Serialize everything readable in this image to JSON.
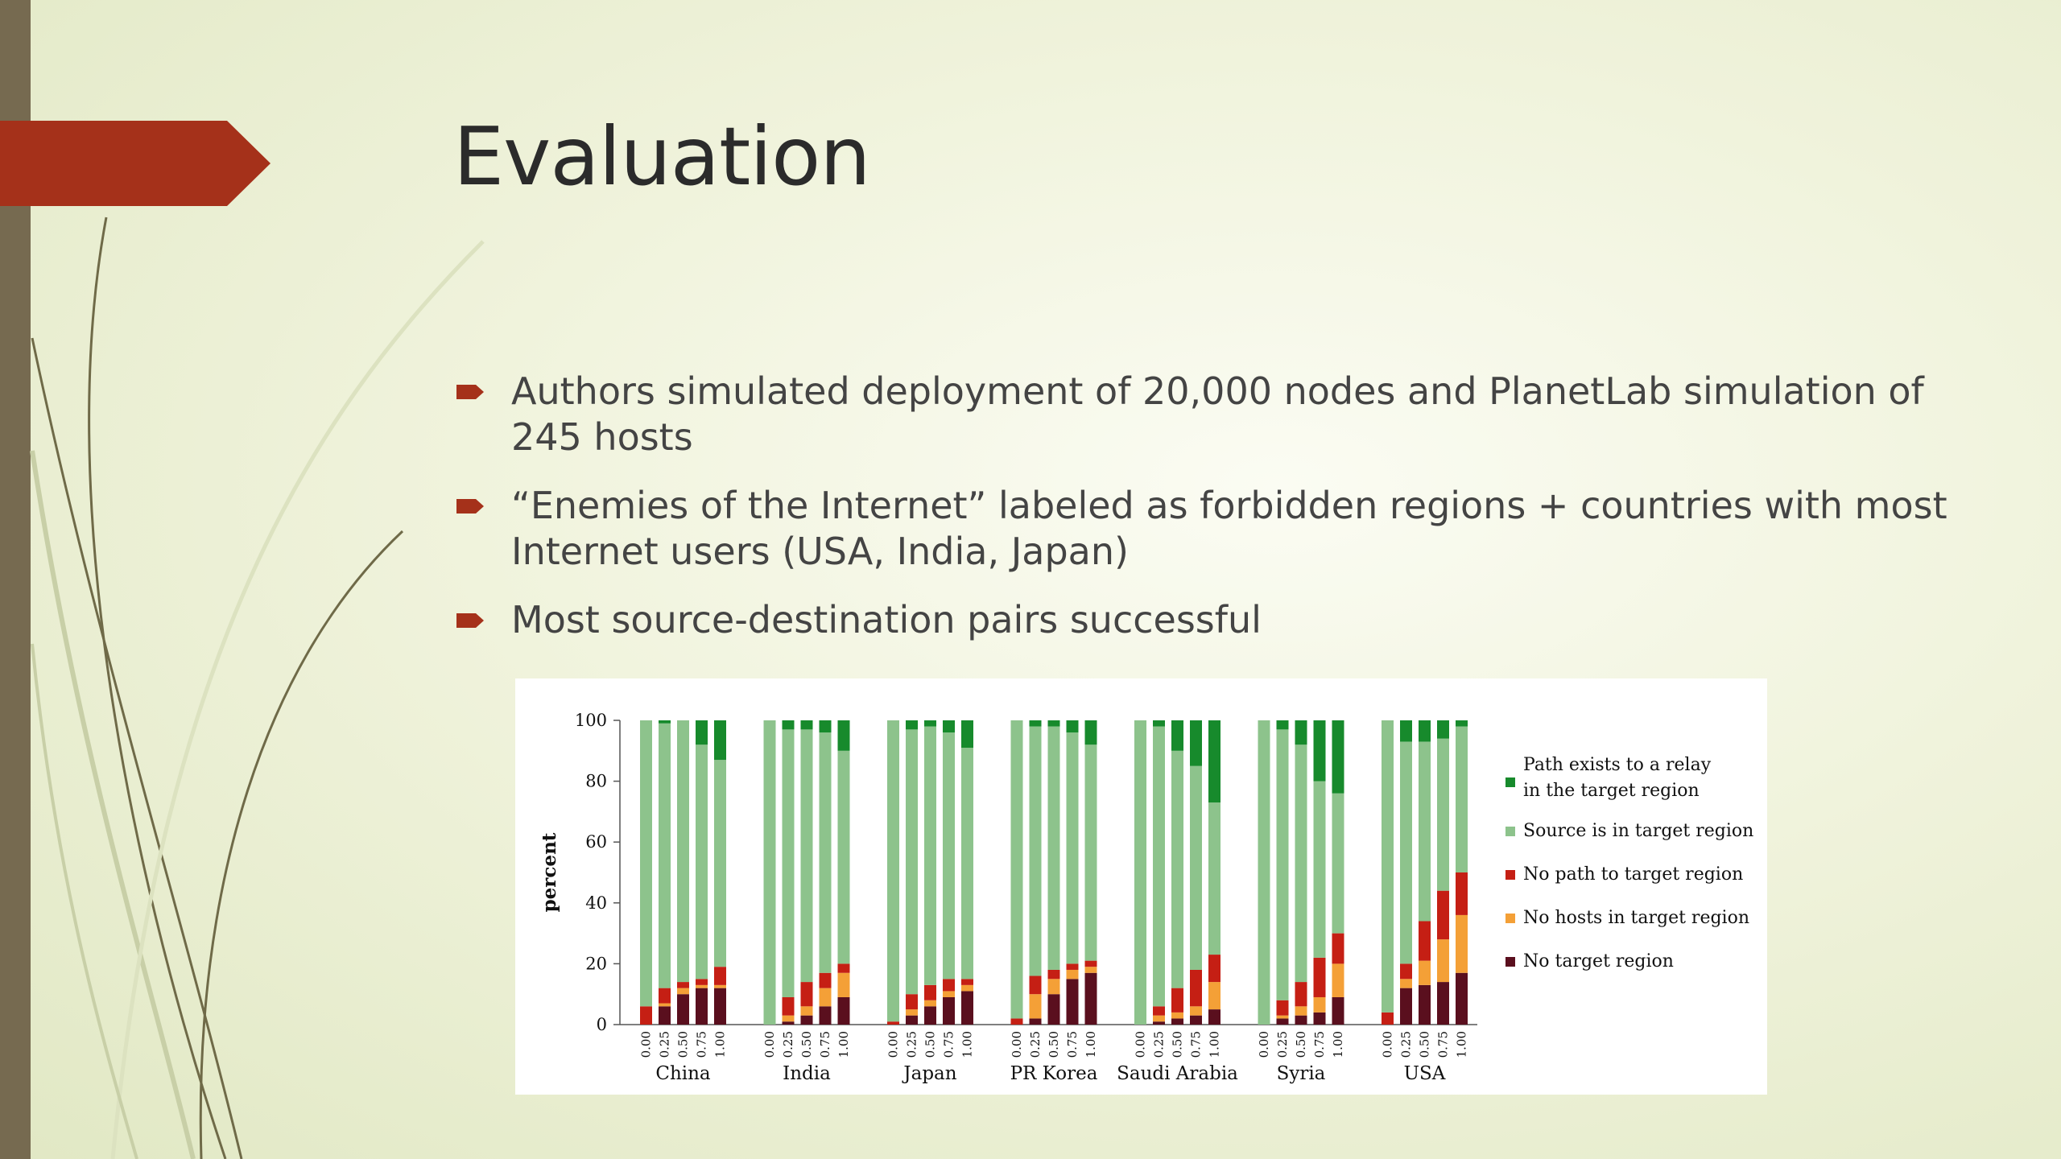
{
  "slide": {
    "title": "Evaluation",
    "bullets": [
      "Authors simulated deployment of 20,000 nodes and PlanetLab simulation of 245 hosts",
      "“Enemies of the Internet” labeled as forbidden regions + countries with most Internet users (USA, India, Japan)",
      "Most source-destination pairs successful"
    ],
    "colors": {
      "accent": "#a5311a",
      "sidebar": "#766a50"
    }
  },
  "chart_data": {
    "type": "bar",
    "stacked": true,
    "ylabel": "percent",
    "ylim": [
      0,
      100
    ],
    "yticks": [
      0,
      20,
      40,
      60,
      80,
      100
    ],
    "groups": [
      "China",
      "India",
      "Japan",
      "PR Korea",
      "Saudi Arabia",
      "Syria",
      "USA"
    ],
    "subcategories": [
      "0.00",
      "0.25",
      "0.50",
      "0.75",
      "1.00"
    ],
    "series": [
      {
        "name": "No target region",
        "color": "#5a0f1e",
        "values": [
          [
            0,
            6,
            10,
            12,
            12
          ],
          [
            0,
            1,
            3,
            6,
            9
          ],
          [
            0,
            3,
            6,
            9,
            11
          ],
          [
            0,
            2,
            10,
            15,
            17
          ],
          [
            0,
            1,
            2,
            3,
            5
          ],
          [
            0,
            2,
            3,
            4,
            9
          ],
          [
            0,
            12,
            13,
            14,
            17
          ]
        ]
      },
      {
        "name": "No hosts in target region",
        "color": "#f4a037",
        "values": [
          [
            0,
            1,
            2,
            1,
            1
          ],
          [
            0,
            2,
            3,
            6,
            8
          ],
          [
            0,
            2,
            2,
            2,
            2
          ],
          [
            0,
            8,
            5,
            3,
            2
          ],
          [
            0,
            2,
            2,
            3,
            9
          ],
          [
            0,
            1,
            3,
            5,
            11
          ],
          [
            0,
            3,
            8,
            14,
            19
          ]
        ]
      },
      {
        "name": "No path to target region",
        "color": "#c51f14",
        "values": [
          [
            6,
            5,
            2,
            2,
            6
          ],
          [
            0,
            6,
            8,
            5,
            3
          ],
          [
            1,
            5,
            5,
            4,
            2
          ],
          [
            2,
            6,
            3,
            2,
            2
          ],
          [
            0,
            3,
            8,
            12,
            9
          ],
          [
            0,
            5,
            8,
            13,
            10
          ],
          [
            4,
            5,
            13,
            16,
            14
          ]
        ]
      },
      {
        "name": "Source is in target region",
        "color": "#8dc38c",
        "values": [
          [
            94,
            87,
            86,
            77,
            68
          ],
          [
            100,
            88,
            83,
            79,
            70
          ],
          [
            99,
            87,
            85,
            81,
            76
          ],
          [
            98,
            82,
            80,
            76,
            71
          ],
          [
            100,
            92,
            78,
            67,
            50
          ],
          [
            100,
            89,
            78,
            58,
            46
          ],
          [
            96,
            73,
            59,
            50,
            48
          ]
        ]
      },
      {
        "name": "Path exists to a relay in the target region",
        "color": "#178a2c",
        "values": [
          [
            0,
            1,
            0,
            8,
            13
          ],
          [
            0,
            3,
            3,
            4,
            10
          ],
          [
            0,
            3,
            2,
            4,
            9
          ],
          [
            0,
            2,
            2,
            4,
            8
          ],
          [
            0,
            2,
            10,
            15,
            27
          ],
          [
            0,
            3,
            8,
            20,
            24
          ],
          [
            0,
            7,
            7,
            6,
            2
          ]
        ]
      }
    ],
    "legend": {
      "position": "right",
      "entries": [
        {
          "lines": [
            "Path exists to a relay",
            "in the target region"
          ],
          "color": "#178a2c"
        },
        {
          "lines": [
            "Source is in target region"
          ],
          "color": "#8dc38c"
        },
        {
          "lines": [
            "No path to target region"
          ],
          "color": "#c51f14"
        },
        {
          "lines": [
            "No hosts in target region"
          ],
          "color": "#f4a037"
        },
        {
          "lines": [
            "No target region"
          ],
          "color": "#5a0f1e"
        }
      ]
    }
  }
}
